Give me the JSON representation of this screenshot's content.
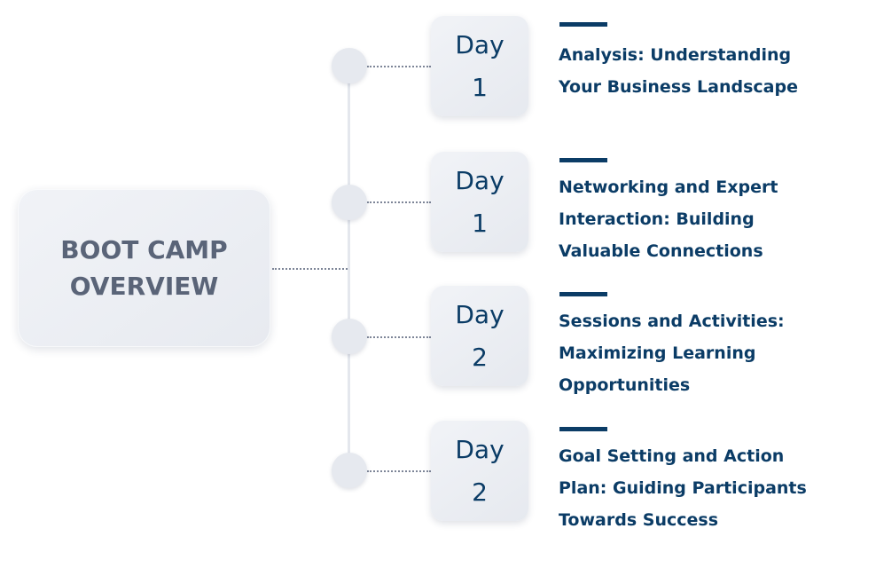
{
  "overview": {
    "title_line1": "BOOT CAMP",
    "title_line2": "OVERVIEW"
  },
  "items": [
    {
      "day_word": "Day",
      "day_num": "1",
      "lines": [
        "Analysis: Understanding",
        "Your Business Landscape"
      ]
    },
    {
      "day_word": "Day",
      "day_num": "1",
      "lines": [
        "Networking and Expert",
        "Interaction: Building",
        "Valuable Connections"
      ]
    },
    {
      "day_word": "Day",
      "day_num": "2",
      "lines": [
        "Sessions and Activities:",
        "Maximizing Learning",
        "Opportunities"
      ]
    },
    {
      "day_word": "Day",
      "day_num": "2",
      "lines": [
        "Goal Setting and Action",
        "Plan: Guiding Participants",
        "Towards Success"
      ]
    }
  ],
  "colors": {
    "accent": "#0b3c66",
    "title_gray": "#5a6478",
    "box_fill": "#eceff4"
  }
}
